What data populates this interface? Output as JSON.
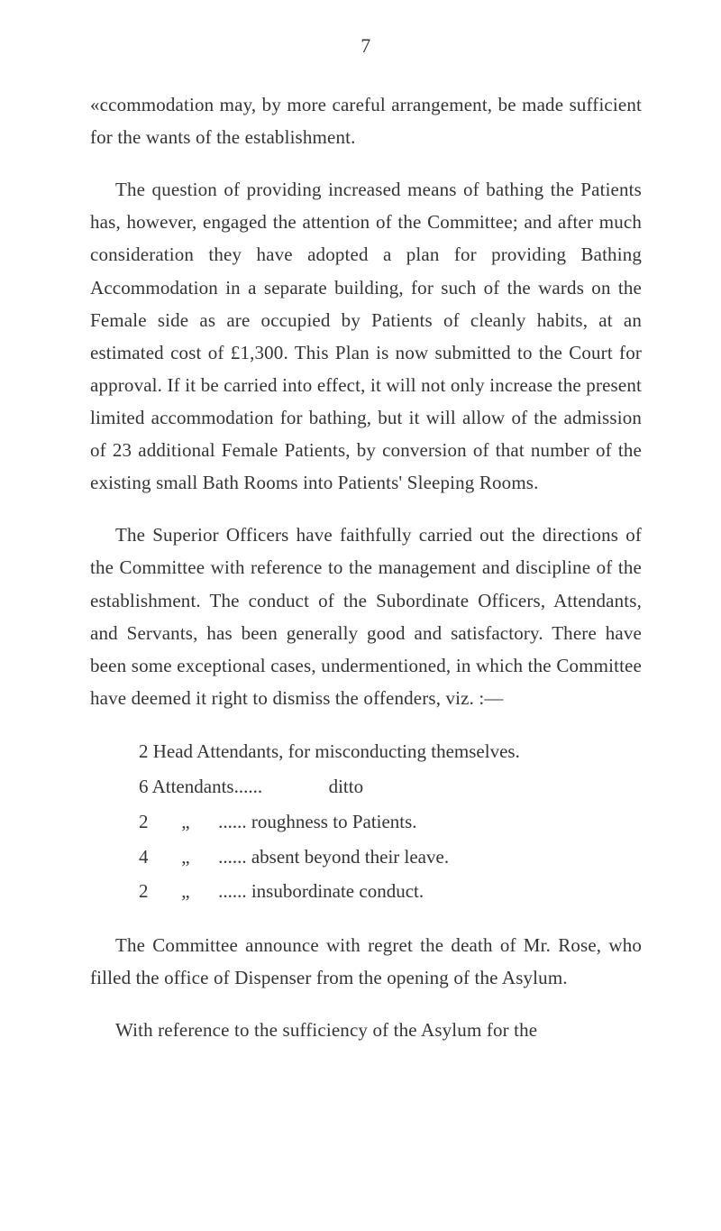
{
  "page": {
    "number": "7",
    "background_color": "#ffffff",
    "text_color": "#343434",
    "font_family": "Georgia, 'Times New Roman', serif",
    "body_font_size_pt": 16,
    "line_height": 1.72
  },
  "paragraphs": {
    "p1": "«ccommodation may, by more careful arrangement, be made sufficient for the wants of the establishment.",
    "p2": "The question of providing increased means of bathing the Patients has, however, engaged the attention of the Committee; and after much consideration they have adopted a plan for providing Bathing Accommodation in a separate building, for such of the wards on the Female side as are occupied by Patients of cleanly habits, at an estimated cost of £1,300. This Plan is now submitted to the Court for approval. If it be carried into effect, it will not only increase the present limited accommodation for bathing, but it will allow of the admission of 23 additional Female Patients, by conversion of that number of the existing small Bath Rooms into Patients' Sleeping Rooms.",
    "p3": "The Superior Officers have faithfully carried out the directions of the Committee with reference to the manage­ment and discipline of the establishment. The conduct of the Subordinate Officers, Attendants, and Servants, has been generally good and satisfactory. There have been some exceptional cases, undermentioned, in which the Committee have deemed it right to dismiss the offenders, viz. :—",
    "p4": "The Committee announce with regret the death of Mr. Rose, who filled the office of Dispenser from the opening of the Asylum.",
    "p5": "With reference to the sufficiency of the Asylum for the"
  },
  "list": {
    "l1": "2 Head Attendants, for misconducting themselves.",
    "l2": "6 Attendants......              ditto",
    "l3": "2       „      ...... roughness to Patients.",
    "l4": "4       „      ...... absent beyond their leave.",
    "l5": "2       „      ...... insubordinate conduct."
  }
}
